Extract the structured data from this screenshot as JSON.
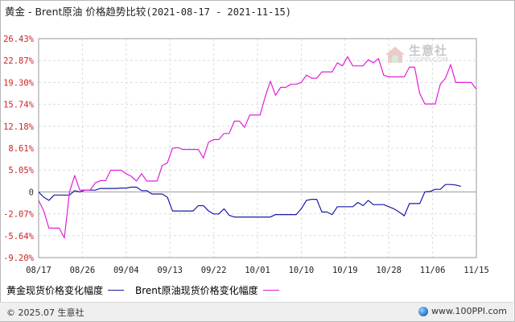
{
  "title": {
    "main": "黄金 - Brent原油 价格趋势比较",
    "range": "(2021-08-17 - 2021-11-15)"
  },
  "watermark": {
    "brand": "生意社",
    "url": "100PPI.COM",
    "icon": "house-logo-icon"
  },
  "legend": {
    "gold_label": "黄金现货价格变化幅度",
    "brent_label": "Brent原油现货价格变化幅度"
  },
  "footer": {
    "copyright": "© 2025.07 生意社",
    "site": "www.100PPI.com",
    "icon": "globe-icon"
  },
  "colors": {
    "gold": "#1a1aa6",
    "brent": "#e020d8",
    "positive_tick": "#cc2222",
    "negative_tick": "#cc2222",
    "zero_tick": "#333333",
    "grid": "#dcdcdc"
  },
  "chart_data": {
    "type": "line",
    "x_categories": [
      "08/17",
      "08/26",
      "09/04",
      "09/13",
      "09/22",
      "10/01",
      "10/10",
      "10/19",
      "10/28",
      "11/06",
      "11/15"
    ],
    "y_ticks": [
      "26.43%",
      "22.87%",
      "19.30%",
      "15.74%",
      "12.18%",
      "8.61%",
      "5.05%",
      "0",
      "-2.07%",
      "-5.64%",
      "-9.20%"
    ],
    "ylim": [
      -9.2,
      26.43
    ],
    "grid": true,
    "legend_position": "bottom",
    "series": [
      {
        "name": "黄金现货价格变化幅度",
        "color": "#1a1aa6",
        "points": [
          [
            0,
            0
          ],
          [
            1,
            -0.5
          ],
          [
            2,
            -0.8
          ],
          [
            3,
            -0.3
          ],
          [
            4,
            -0.3
          ],
          [
            5,
            -0.3
          ],
          [
            6,
            -0.3
          ],
          [
            7,
            0.3
          ],
          [
            8,
            0
          ],
          [
            9,
            0.4
          ],
          [
            10,
            0.4
          ],
          [
            11,
            0.4
          ],
          [
            12,
            0.8
          ],
          [
            13,
            0.8
          ],
          [
            14,
            0.8
          ],
          [
            15,
            0.8
          ],
          [
            16,
            0.9
          ],
          [
            17,
            0.9
          ],
          [
            18,
            1.1
          ],
          [
            19,
            1.1
          ],
          [
            20,
            0.3
          ],
          [
            21,
            0.3
          ],
          [
            22,
            -0.2
          ],
          [
            23,
            -0.2
          ],
          [
            24,
            -0.2
          ],
          [
            25,
            -0.5
          ],
          [
            26,
            -1.8
          ],
          [
            27,
            -1.8
          ],
          [
            28,
            -1.8
          ],
          [
            29,
            -1.8
          ],
          [
            30,
            -1.8
          ],
          [
            31,
            -1.3
          ],
          [
            32,
            -1.3
          ],
          [
            33,
            -1.8
          ],
          [
            34,
            -2.1
          ],
          [
            35,
            -2.1
          ],
          [
            36,
            -1.6
          ],
          [
            37,
            -2.3
          ],
          [
            38,
            -2.6
          ],
          [
            39,
            -2.6
          ],
          [
            40,
            -2.6
          ],
          [
            41,
            -2.6
          ],
          [
            42,
            -2.6
          ],
          [
            43,
            -2.6
          ],
          [
            44,
            -2.6
          ],
          [
            45,
            -2.6
          ],
          [
            46,
            -2.2
          ],
          [
            47,
            -2.2
          ],
          [
            48,
            -2.2
          ],
          [
            49,
            -2.2
          ],
          [
            50,
            -2.2
          ],
          [
            51,
            -1.6
          ],
          [
            52,
            -0.8
          ],
          [
            53,
            -0.7
          ],
          [
            54,
            -0.7
          ],
          [
            55,
            -1.9
          ],
          [
            56,
            -1.9
          ],
          [
            57,
            -2.2
          ],
          [
            58,
            -1.4
          ],
          [
            59,
            -1.4
          ],
          [
            60,
            -1.4
          ],
          [
            61,
            -1.4
          ],
          [
            62,
            -1.0
          ],
          [
            63,
            -1.3
          ],
          [
            64,
            -0.8
          ],
          [
            65,
            -1.2
          ],
          [
            66,
            -1.2
          ],
          [
            67,
            -1.2
          ],
          [
            68,
            -1.4
          ],
          [
            69,
            -1.6
          ],
          [
            70,
            -1.9
          ],
          [
            71,
            -2.4
          ],
          [
            72,
            -1.1
          ],
          [
            73,
            -1.1
          ],
          [
            74,
            -1.1
          ],
          [
            75,
            0
          ],
          [
            76,
            0.1
          ],
          [
            77,
            0.6
          ],
          [
            78,
            0.6
          ],
          [
            79,
            1.7
          ],
          [
            80,
            1.7
          ],
          [
            81,
            1.6
          ],
          [
            82,
            1.3
          ]
        ]
      },
      {
        "name": "Brent原油现货价格变化幅度",
        "color": "#e020d8",
        "points": [
          [
            0,
            -0.8
          ],
          [
            1,
            -1.8
          ],
          [
            2,
            -4.4
          ],
          [
            3,
            -4.4
          ],
          [
            4,
            -4.4
          ],
          [
            5,
            -6.0
          ],
          [
            6,
            0
          ],
          [
            7,
            3.8
          ],
          [
            8,
            0.4
          ],
          [
            9,
            0.4
          ],
          [
            10,
            0.4
          ],
          [
            11,
            2.1
          ],
          [
            12,
            2.6
          ],
          [
            13,
            2.6
          ],
          [
            14,
            5.0
          ],
          [
            15,
            5.0
          ],
          [
            16,
            5.0
          ],
          [
            17,
            4.2
          ],
          [
            18,
            3.6
          ],
          [
            19,
            2.5
          ],
          [
            20,
            4.2
          ],
          [
            21,
            2.5
          ],
          [
            22,
            2.5
          ],
          [
            23,
            2.5
          ],
          [
            24,
            5.8
          ],
          [
            25,
            6.2
          ],
          [
            26,
            8.6
          ],
          [
            27,
            8.7
          ],
          [
            28,
            8.4
          ],
          [
            29,
            8.4
          ],
          [
            30,
            8.4
          ],
          [
            31,
            8.4
          ],
          [
            32,
            7.0
          ],
          [
            33,
            9.6
          ],
          [
            34,
            10.0
          ],
          [
            35,
            10.0
          ],
          [
            36,
            11.0
          ],
          [
            37,
            11.0
          ],
          [
            38,
            13.0
          ],
          [
            39,
            13.0
          ],
          [
            40,
            12.0
          ],
          [
            41,
            14.0
          ],
          [
            42,
            14.0
          ],
          [
            43,
            14.0
          ],
          [
            44,
            17.0
          ],
          [
            45,
            19.5
          ],
          [
            46,
            17.2
          ],
          [
            47,
            18.5
          ],
          [
            48,
            18.5
          ],
          [
            49,
            19.0
          ],
          [
            50,
            19.0
          ],
          [
            51,
            19.3
          ],
          [
            52,
            20.5
          ],
          [
            53,
            20.0
          ],
          [
            54,
            20.0
          ],
          [
            55,
            21.0
          ],
          [
            56,
            21.0
          ],
          [
            57,
            21.0
          ],
          [
            58,
            22.5
          ],
          [
            59,
            22.0
          ],
          [
            60,
            23.5
          ],
          [
            61,
            22.0
          ],
          [
            62,
            22.0
          ],
          [
            63,
            22.0
          ],
          [
            64,
            23.0
          ],
          [
            65,
            22.5
          ],
          [
            66,
            23.2
          ],
          [
            67,
            20.5
          ],
          [
            68,
            20.2
          ],
          [
            69,
            20.2
          ],
          [
            70,
            20.2
          ],
          [
            71,
            20.2
          ],
          [
            72,
            21.8
          ],
          [
            73,
            21.8
          ],
          [
            74,
            17.5
          ],
          [
            75,
            15.8
          ],
          [
            76,
            15.8
          ],
          [
            77,
            15.8
          ],
          [
            78,
            19.0
          ],
          [
            79,
            20.0
          ],
          [
            80,
            22.2
          ],
          [
            81,
            19.3
          ],
          [
            82,
            19.3
          ],
          [
            83,
            19.3
          ],
          [
            84,
            19.3
          ],
          [
            85,
            18.2
          ]
        ]
      }
    ]
  }
}
